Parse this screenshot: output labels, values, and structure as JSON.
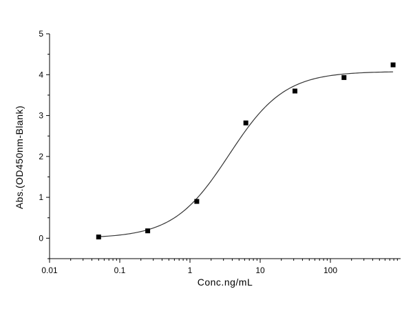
{
  "chart_data": {
    "type": "scatter",
    "title": "",
    "xlabel": "Conc.ng/mL",
    "ylabel": "Abs.(OD450nm-Blank)",
    "x_scale": "log",
    "xlim": [
      0.01,
      1000
    ],
    "ylim": [
      -0.5,
      5
    ],
    "grid": false,
    "legend": "none",
    "x_ticks": [
      0.01,
      0.1,
      1,
      10,
      100
    ],
    "x_tick_labels": [
      "0.01",
      "0.1",
      "1",
      "10",
      "100"
    ],
    "y_ticks": [
      0,
      1,
      2,
      3,
      4,
      5
    ],
    "y_tick_labels": [
      "0",
      "1",
      "2",
      "3",
      "4",
      "5"
    ],
    "series": [
      {
        "x": [
          0.05,
          0.25,
          1.25,
          6.25,
          31.25,
          156.25,
          781.25
        ],
        "y": [
          0.03,
          0.18,
          0.9,
          2.82,
          3.6,
          3.93,
          4.24
        ],
        "marker": "square",
        "color": "#000000"
      }
    ],
    "fit_curve": {
      "model": "4PL",
      "bottom": 0.0,
      "top": 4.08,
      "ec50": 3.6,
      "hill": 1.1,
      "color": "#333333"
    }
  }
}
